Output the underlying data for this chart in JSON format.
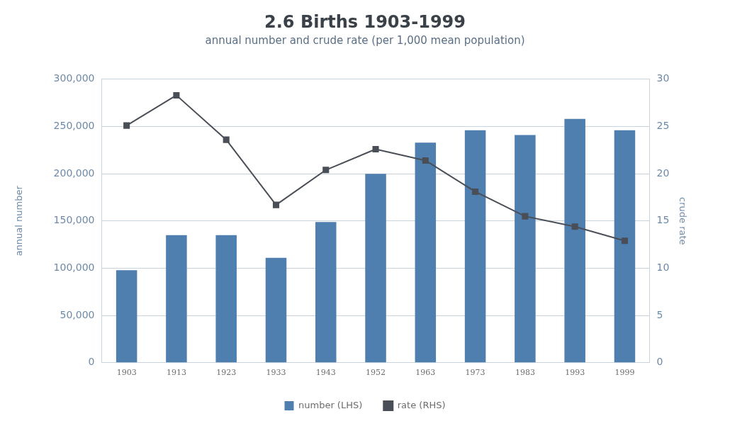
{
  "chart_data": {
    "type": "bar",
    "title": "2.6 Births 1903-1999",
    "subtitle": "annual number and crude rate (per 1,000 mean population)",
    "ylabel": "annual number",
    "y2label": "crude rate",
    "categories": [
      "1903",
      "1913",
      "1923",
      "1933",
      "1943",
      "1952",
      "1963",
      "1973",
      "1983",
      "1993",
      "1999"
    ],
    "series": [
      {
        "name": "number (LHS)",
        "color": "#4f7fae",
        "values": [
          98000,
          135000,
          135000,
          111000,
          149000,
          200000,
          233000,
          246000,
          241000,
          258000,
          246000
        ]
      },
      {
        "name": "rate (RHS)",
        "type": "line",
        "axis": "y2",
        "color": "#4a4f57",
        "values": [
          25.1,
          28.3,
          23.6,
          16.7,
          20.4,
          22.6,
          21.4,
          18.1,
          15.5,
          14.4,
          12.9
        ]
      }
    ],
    "ylim": [
      0,
      300000
    ],
    "yticks": [
      {
        "value": 0,
        "label": "0"
      },
      {
        "value": 50000,
        "label": "50,000"
      },
      {
        "value": 100000,
        "label": "100,000"
      },
      {
        "value": 150000,
        "label": "150,000"
      },
      {
        "value": 200000,
        "label": "200,000"
      },
      {
        "value": 250000,
        "label": "250,000"
      },
      {
        "value": 300000,
        "label": "300,000"
      }
    ],
    "y2lim": [
      0,
      30
    ],
    "y2ticks": [
      0,
      5,
      10,
      15,
      20,
      25,
      30
    ],
    "grid": "y",
    "legend": "bottom",
    "marker": "square",
    "line_style": "solid"
  }
}
